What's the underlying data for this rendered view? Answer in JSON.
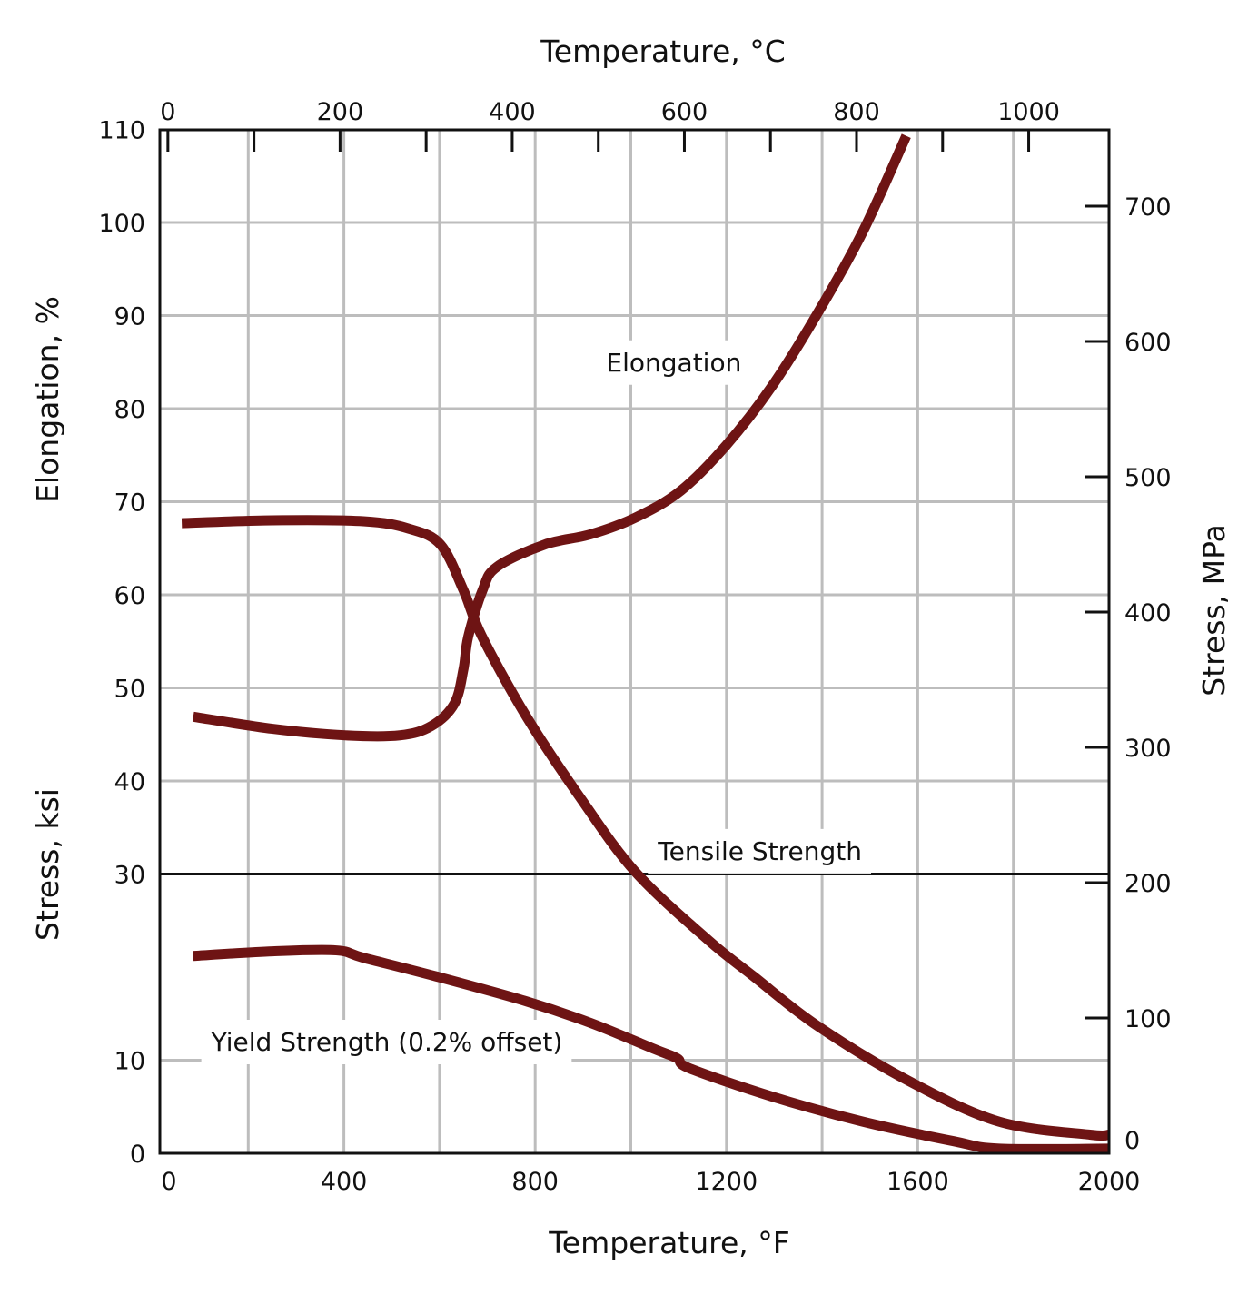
{
  "chart_data": {
    "type": "line",
    "colors": {
      "curve": "#6e1414",
      "grid": "#bdbdbd",
      "axis": "#111111"
    },
    "x_bottom": {
      "label": "Temperature, °F",
      "range": [
        0,
        2000
      ],
      "ticks": [
        0,
        400,
        800,
        1200,
        1600,
        2000
      ],
      "grid_step": 200
    },
    "x_top": {
      "label": "Temperature, °C",
      "ticks": [
        0,
        200,
        400,
        600,
        800,
        1000
      ],
      "minor_ticks": [
        100,
        300,
        500,
        700,
        900
      ]
    },
    "y_left": {
      "label_upper": "Elongation, %",
      "label_lower": "Stress, ksi",
      "range": [
        0,
        110
      ],
      "ticks": [
        0,
        10,
        30,
        40,
        50,
        60,
        70,
        80,
        90,
        100,
        110
      ],
      "divider": 30
    },
    "y_right": {
      "label": "Stress, MPa",
      "ticks": [
        0,
        100,
        200,
        300,
        400,
        500,
        600,
        700
      ]
    },
    "series": [
      {
        "name": "Elongation",
        "label_pos": [
          1090,
          85
        ],
        "points": [
          [
            85,
            46.9
          ],
          [
            251,
            45.6
          ],
          [
            403,
            44.9
          ],
          [
            517,
            44.9
          ],
          [
            583,
            45.9
          ],
          [
            631,
            48.3
          ],
          [
            650,
            52
          ],
          [
            660,
            55.5
          ],
          [
            690,
            60.5
          ],
          [
            720,
            63
          ],
          [
            820,
            65.4
          ],
          [
            916,
            66.5
          ],
          [
            1010,
            68.3
          ],
          [
            1105,
            71.2
          ],
          [
            1200,
            76.1
          ],
          [
            1295,
            82.4
          ],
          [
            1390,
            90.2
          ],
          [
            1485,
            99
          ],
          [
            1576,
            109.3
          ]
        ]
      },
      {
        "name": "Tensile Strength",
        "label_pos": [
          1270,
          32.5
        ],
        "points": [
          [
            61,
            67.7
          ],
          [
            251,
            68
          ],
          [
            441,
            67.9
          ],
          [
            536,
            67.1
          ],
          [
            602,
            65.4
          ],
          [
            650,
            60.5
          ],
          [
            688,
            55.6
          ],
          [
            783,
            46.8
          ],
          [
            897,
            38
          ],
          [
            1010,
            30.2
          ],
          [
            1162,
            22.9
          ],
          [
            1257,
            19
          ],
          [
            1390,
            13.7
          ],
          [
            1580,
            7.8
          ],
          [
            1770,
            3.4
          ],
          [
            1960,
            2
          ],
          [
            2000,
            2
          ]
        ]
      },
      {
        "name": "Yield Strength (0.2% offset)",
        "label_pos": [
          490,
          12
        ],
        "points": [
          [
            85,
            21.2
          ],
          [
            251,
            21.7
          ],
          [
            384,
            21.8
          ],
          [
            441,
            21
          ],
          [
            593,
            19
          ],
          [
            783,
            16.3
          ],
          [
            916,
            14
          ],
          [
            1049,
            11.2
          ],
          [
            1097,
            10.2
          ],
          [
            1124,
            9.1
          ],
          [
            1295,
            6.1
          ],
          [
            1485,
            3.4
          ],
          [
            1675,
            1.3
          ],
          [
            1770,
            0.5
          ],
          [
            2000,
            0.5
          ]
        ]
      }
    ]
  }
}
